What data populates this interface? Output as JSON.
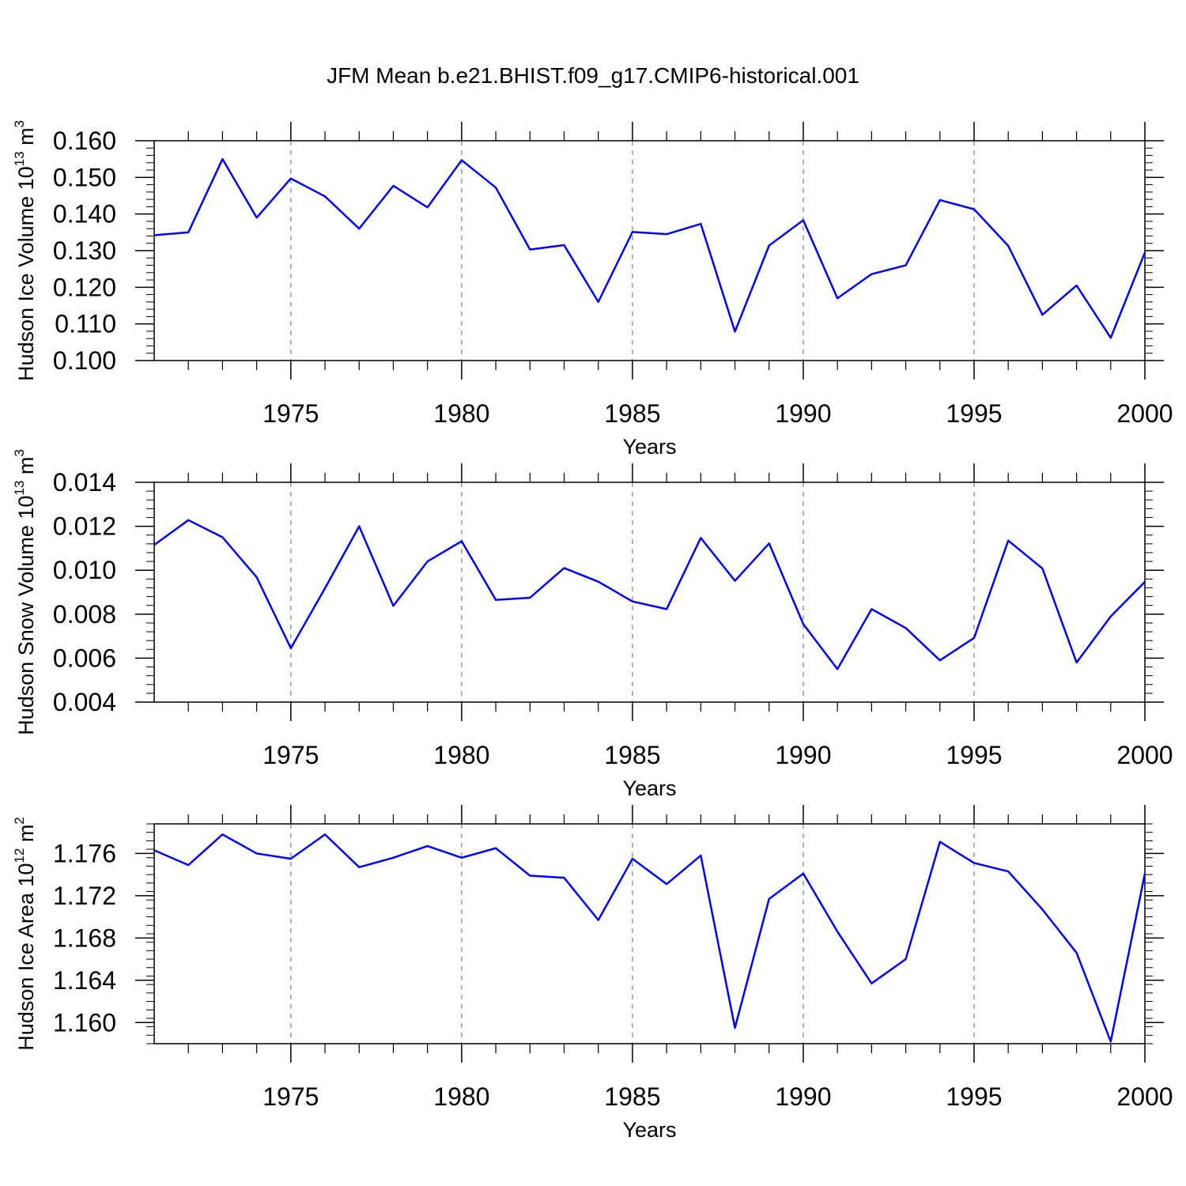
{
  "title": "JFM Mean b.e21.BHIST.f09_g17.CMIP6-historical.001",
  "colors": {
    "series": "#0000ff",
    "grid": "#999999",
    "axis": "#000000"
  },
  "chart_data": [
    {
      "type": "line",
      "xlabel": "Years",
      "ylabel": {
        "prefix": "Hudson Ice Volume 10",
        "exp": "13",
        "unit": " m",
        "unit_exp": "3"
      },
      "xlim": [
        1971,
        2000
      ],
      "ylim": [
        0.1,
        0.16
      ],
      "xticks": [
        1975,
        1980,
        1985,
        1990,
        1995,
        2000
      ],
      "yticks": [
        0.1,
        0.11,
        0.12,
        0.13,
        0.14,
        0.15,
        0.16
      ],
      "ytick_labels": [
        "0.100",
        "0.110",
        "0.120",
        "0.130",
        "0.140",
        "0.150",
        "0.160"
      ],
      "yminor_step": 0.002,
      "x": [
        1971,
        1972,
        1973,
        1974,
        1975,
        1976,
        1977,
        1978,
        1979,
        1980,
        1981,
        1982,
        1983,
        1984,
        1985,
        1986,
        1987,
        1988,
        1989,
        1990,
        1991,
        1992,
        1993,
        1994,
        1995,
        1996,
        1997,
        1998,
        1999,
        2000
      ],
      "values": [
        0.1342,
        0.135,
        0.155,
        0.139,
        0.1497,
        0.1448,
        0.136,
        0.1477,
        0.1418,
        0.1547,
        0.1472,
        0.1303,
        0.1315,
        0.116,
        0.1351,
        0.1345,
        0.1373,
        0.1079,
        0.1314,
        0.1383,
        0.117,
        0.1236,
        0.126,
        0.1438,
        0.1413,
        0.1313,
        0.1125,
        0.1205,
        0.1062,
        0.1295
      ]
    },
    {
      "type": "line",
      "xlabel": "Years",
      "ylabel": {
        "prefix": "Hudson Snow Volume 10",
        "exp": "13",
        "unit": " m",
        "unit_exp": "3"
      },
      "xlim": [
        1971,
        2000
      ],
      "ylim": [
        0.004,
        0.014
      ],
      "xticks": [
        1975,
        1980,
        1985,
        1990,
        1995,
        2000
      ],
      "yticks": [
        0.004,
        0.006,
        0.008,
        0.01,
        0.012,
        0.014
      ],
      "ytick_labels": [
        "0.004",
        "0.006",
        "0.008",
        "0.010",
        "0.012",
        "0.014"
      ],
      "yminor_step": 0.0004,
      "x": [
        1971,
        1972,
        1973,
        1974,
        1975,
        1976,
        1977,
        1978,
        1979,
        1980,
        1981,
        1982,
        1983,
        1984,
        1985,
        1986,
        1987,
        1988,
        1989,
        1990,
        1991,
        1992,
        1993,
        1994,
        1995,
        1996,
        1997,
        1998,
        1999,
        2000
      ],
      "values": [
        0.01115,
        0.01228,
        0.0115,
        0.00968,
        0.00645,
        0.00918,
        0.012,
        0.00838,
        0.0104,
        0.01132,
        0.00865,
        0.00875,
        0.0101,
        0.00948,
        0.00858,
        0.00823,
        0.01147,
        0.00952,
        0.01122,
        0.00755,
        0.0055,
        0.00823,
        0.00737,
        0.0059,
        0.00692,
        0.01135,
        0.01008,
        0.0058,
        0.0079,
        0.00947
      ]
    },
    {
      "type": "line",
      "xlabel": "Years",
      "ylabel": {
        "prefix": "Hudson Ice Area 10",
        "exp": "12",
        "unit": " m",
        "unit_exp": "2"
      },
      "xlim": [
        1971,
        2000
      ],
      "ylim": [
        1.158,
        1.1788
      ],
      "xticks": [
        1975,
        1980,
        1985,
        1990,
        1995,
        2000
      ],
      "yticks": [
        1.16,
        1.164,
        1.168,
        1.172,
        1.176
      ],
      "ytick_labels": [
        "1.160",
        "1.164",
        "1.168",
        "1.172",
        "1.176"
      ],
      "yminor_step": 0.0008,
      "x": [
        1971,
        1972,
        1973,
        1974,
        1975,
        1976,
        1977,
        1978,
        1979,
        1980,
        1981,
        1982,
        1983,
        1984,
        1985,
        1986,
        1987,
        1988,
        1989,
        1990,
        1991,
        1992,
        1993,
        1994,
        1995,
        1996,
        1997,
        1998,
        1999,
        2000
      ],
      "values": [
        1.1763,
        1.1749,
        1.1778,
        1.176,
        1.1755,
        1.1778,
        1.1747,
        1.1756,
        1.1767,
        1.1756,
        1.1765,
        1.1739,
        1.1737,
        1.1697,
        1.1755,
        1.1731,
        1.1758,
        1.1595,
        1.1717,
        1.1741,
        1.1686,
        1.1637,
        1.166,
        1.1771,
        1.1751,
        1.1743,
        1.1707,
        1.1666,
        1.1582,
        1.1741
      ]
    }
  ]
}
